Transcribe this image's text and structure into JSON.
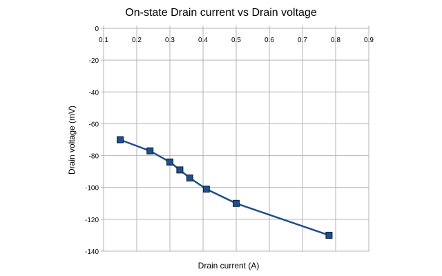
{
  "chart_data": {
    "type": "scatter",
    "title": "On-state Drain current vs Drain voltage",
    "xlabel": "Drain current (A)",
    "ylabel": "Drain voltage (mV)",
    "xlim": [
      0.1,
      0.9
    ],
    "ylim": [
      -140,
      0
    ],
    "x_ticks": [
      0.1,
      0.2,
      0.3,
      0.4,
      0.5,
      0.6,
      0.7,
      0.8,
      0.9
    ],
    "y_ticks": [
      0,
      -20,
      -40,
      -60,
      -80,
      -100,
      -120,
      -140
    ],
    "x_tick_labels": [
      "0.1",
      "0.2",
      "0.3",
      "0.4",
      "0.5",
      "0.6",
      "0.7",
      "0.8",
      "0.9"
    ],
    "y_tick_labels": [
      "0",
      "-20",
      "-40",
      "-60",
      "-80",
      "-100",
      "-120",
      "-140"
    ],
    "grid": true,
    "legend": "none",
    "x_axis_position": "top",
    "series": [
      {
        "color": "#1f4e8c",
        "marker": "square",
        "line_style": "solid",
        "points": [
          {
            "x": 0.15,
            "y": -70
          },
          {
            "x": 0.24,
            "y": -77
          },
          {
            "x": 0.3,
            "y": -84
          },
          {
            "x": 0.33,
            "y": -89
          },
          {
            "x": 0.36,
            "y": -94
          },
          {
            "x": 0.41,
            "y": -101
          },
          {
            "x": 0.5,
            "y": -110
          },
          {
            "x": 0.78,
            "y": -130
          }
        ]
      }
    ]
  }
}
